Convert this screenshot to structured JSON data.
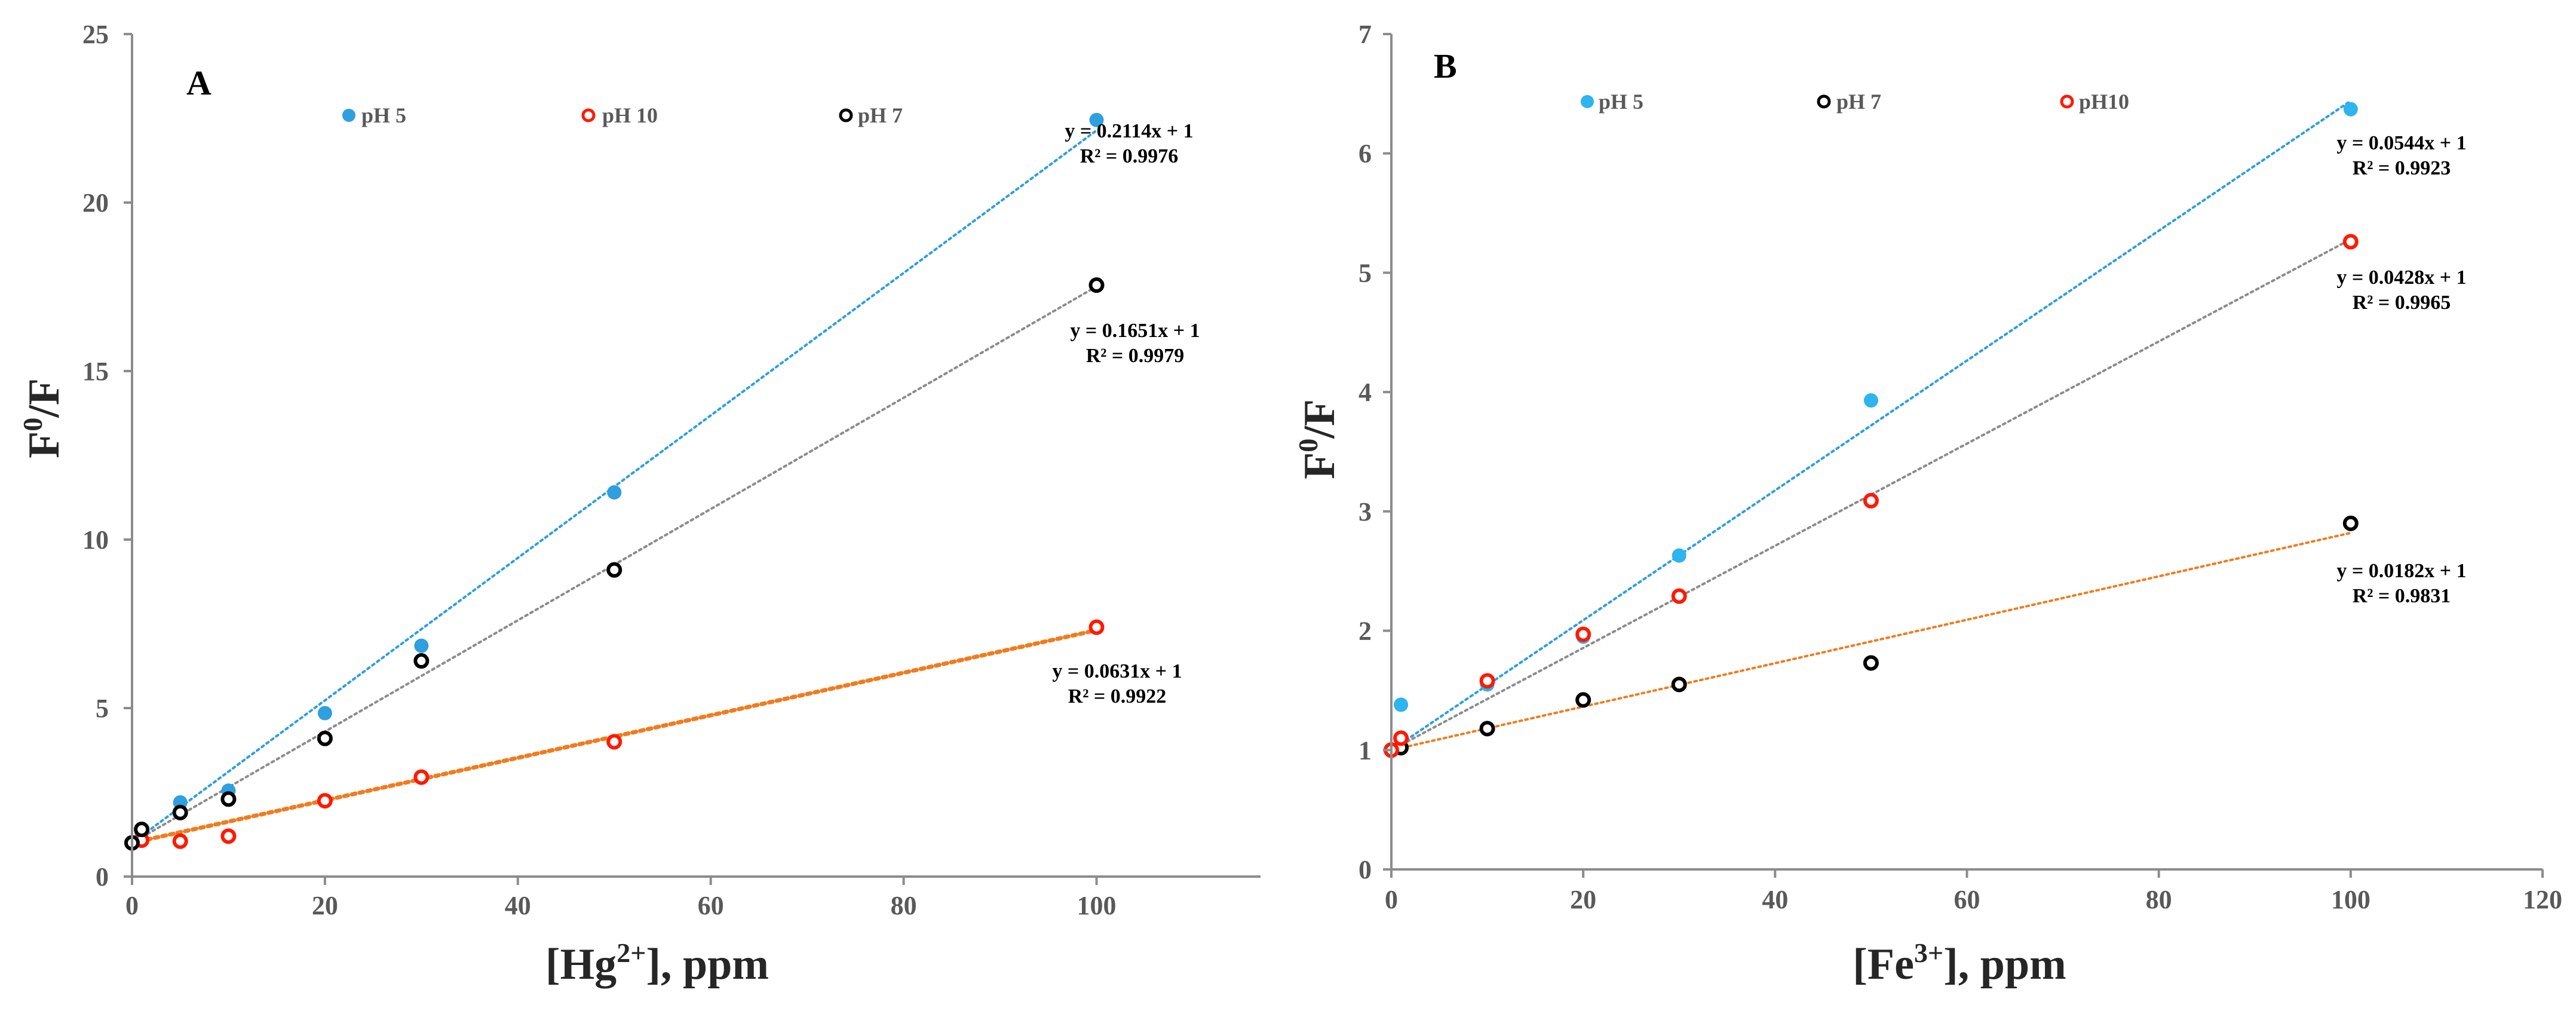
{
  "chart_data": [
    {
      "type": "scatter",
      "panel_label": "A",
      "xlabel_pre": "[Hg",
      "xlabel_sup": "2+",
      "xlabel_post": "], ppm",
      "ylabel_pre": "F",
      "ylabel_sup": "0",
      "ylabel_post": "/F",
      "xlim": [
        0,
        117
      ],
      "ylim": [
        0,
        25
      ],
      "x_ticks": [
        0,
        20,
        40,
        60,
        80,
        100
      ],
      "y_ticks": [
        0,
        5,
        10,
        15,
        20,
        25
      ],
      "x_tick_labels": [
        "0",
        "20",
        "40",
        "60",
        "80",
        "100"
      ],
      "y_tick_labels": [
        "0",
        "5",
        "10",
        "15",
        "20",
        "25"
      ],
      "grid": false,
      "legend_position": "top",
      "series": [
        {
          "name": "pH 5",
          "color": "#2e9fdf",
          "marker": "filled-circle",
          "x": [
            0,
            1,
            5,
            10,
            20,
            30,
            50,
            100
          ],
          "y": [
            1.0,
            1.3,
            2.2,
            2.55,
            4.85,
            6.85,
            11.4,
            22.45
          ],
          "trendline": {
            "slope": 0.2114,
            "intercept": 1,
            "color": "#2e9fdf",
            "equation": "y = 0.2114x + 1",
            "r2": "R² = 0.9976"
          }
        },
        {
          "name": "pH 10",
          "color": "#ff1a00",
          "marker": "ring",
          "x": [
            0,
            1,
            5,
            10,
            20,
            30,
            50,
            100
          ],
          "y": [
            1.0,
            1.08,
            1.05,
            1.2,
            2.25,
            2.95,
            4.0,
            7.4
          ],
          "trendline": {
            "slope": 0.0631,
            "intercept": 1,
            "color": "#f07c1e",
            "equation": "y = 0.0631x + 1",
            "r2": "R² = 0.9922"
          }
        },
        {
          "name": "pH 7",
          "color": "#000000",
          "marker": "ring",
          "x": [
            0,
            1,
            5,
            10,
            20,
            30,
            50,
            100
          ],
          "y": [
            1.0,
            1.4,
            1.9,
            2.3,
            4.1,
            6.4,
            9.1,
            17.55
          ],
          "trendline": {
            "slope": 0.1651,
            "intercept": 1,
            "color": "#8c8c8c",
            "equation": "y = 0.1651x + 1",
            "r2": "R² = 0.9979"
          }
        }
      ]
    },
    {
      "type": "scatter",
      "panel_label": "B",
      "xlabel_pre": "[Fe",
      "xlabel_sup": "3+",
      "xlabel_post": "], ppm",
      "ylabel_pre": "F",
      "ylabel_sup": "0",
      "ylabel_post": "/F",
      "xlim": [
        0,
        120
      ],
      "ylim": [
        0,
        7
      ],
      "x_ticks": [
        0,
        20,
        40,
        60,
        80,
        100,
        120
      ],
      "y_ticks": [
        0,
        1,
        2,
        3,
        4,
        5,
        6,
        7
      ],
      "x_tick_labels": [
        "0",
        "20",
        "40",
        "60",
        "80",
        "100",
        "120"
      ],
      "y_tick_labels": [
        "0",
        "1",
        "2",
        "3",
        "4",
        "5",
        "6",
        "7"
      ],
      "grid": false,
      "legend_position": "top",
      "series": [
        {
          "name": "pH 5",
          "color": "#2eb4ee",
          "marker": "filled-circle",
          "x": [
            0,
            1,
            10,
            20,
            30,
            50,
            100
          ],
          "y": [
            1.0,
            1.38,
            1.55,
            1.95,
            2.63,
            3.93,
            6.37
          ],
          "trendline": {
            "slope": 0.0544,
            "intercept": 1,
            "color": "#2e9fdf",
            "equation": "y = 0.0544x + 1",
            "r2": "R² = 0.9923"
          }
        },
        {
          "name": "pH 7",
          "color": "#000000",
          "marker": "ring",
          "x": [
            0,
            1,
            10,
            20,
            30,
            50,
            100
          ],
          "y": [
            1.0,
            1.02,
            1.18,
            1.42,
            1.55,
            1.73,
            2.9
          ],
          "trendline": {
            "slope": 0.0182,
            "intercept": 1,
            "color": "#f07c1e",
            "equation": "y = 0.0182x + 1",
            "r2": "R² = 0.9831"
          }
        },
        {
          "name": "pH10",
          "color": "#ff1a00",
          "marker": "ring",
          "x": [
            0,
            1,
            10,
            20,
            30,
            50,
            100
          ],
          "y": [
            1.0,
            1.1,
            1.58,
            1.97,
            2.29,
            3.09,
            5.26
          ],
          "trendline": {
            "slope": 0.0428,
            "intercept": 1,
            "color": "#8c8c8c",
            "equation": "y = 0.0428x + 1",
            "r2": "R² = 0.9965"
          }
        }
      ]
    }
  ]
}
